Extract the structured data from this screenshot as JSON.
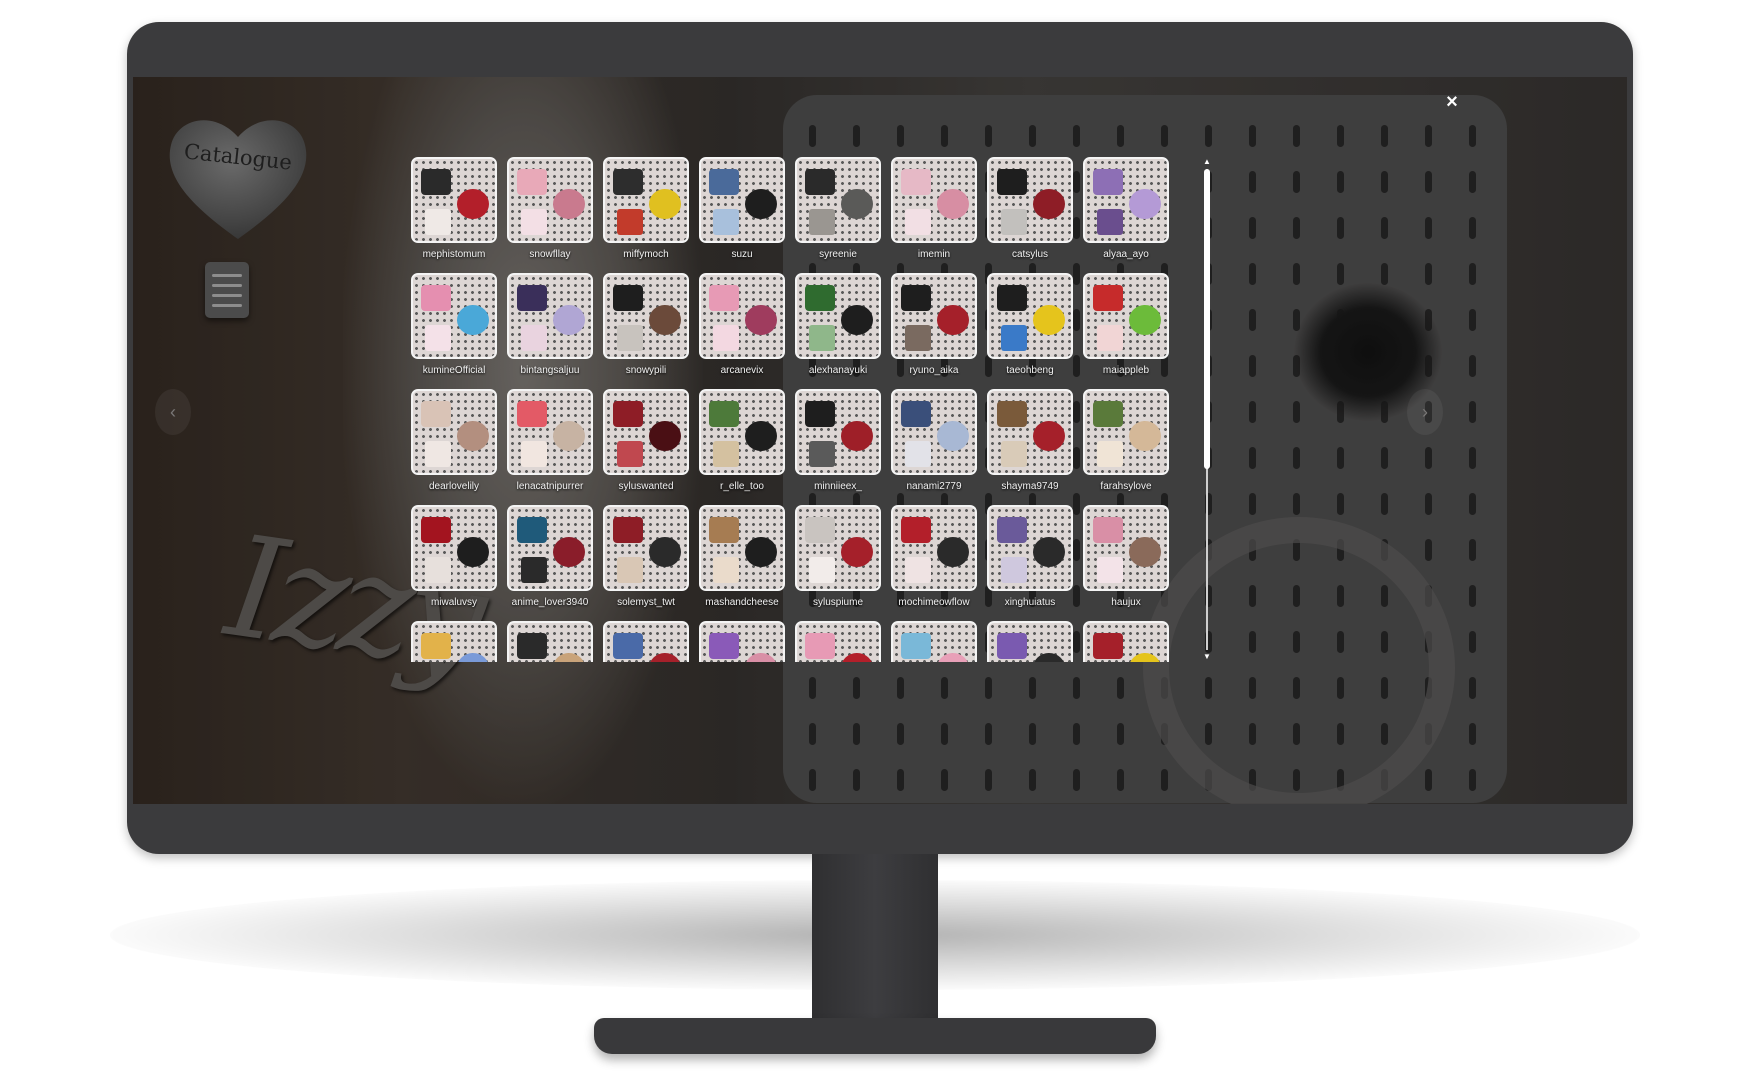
{
  "window": {
    "close_icon": "×"
  },
  "sidebar": {
    "logo_label": "Catalogue",
    "notes_icon": "notepad-icon"
  },
  "signature": {
    "text": "Izzy"
  },
  "navigation": {
    "prev_icon": "‹",
    "next_icon": "›"
  },
  "gallery": {
    "users": [
      {
        "name": "mephistomum",
        "colors": [
          "#2a2a2a",
          "#b31f2a",
          "#efe9e6"
        ]
      },
      {
        "name": "snowfllay",
        "colors": [
          "#e8a9b8",
          "#c97a8e",
          "#f3dfe5"
        ]
      },
      {
        "name": "miffymoch",
        "colors": [
          "#2d2d2d",
          "#e0c020",
          "#c23b2b"
        ]
      },
      {
        "name": "suzu",
        "colors": [
          "#4a6a9a",
          "#1e1e1e",
          "#a8c0dc"
        ]
      },
      {
        "name": "syreenie",
        "colors": [
          "#2a2a2a",
          "#5a5a58",
          "#9a9691"
        ]
      },
      {
        "name": "imemin",
        "colors": [
          "#e6b9c6",
          "#d78ea3",
          "#f2dfe4"
        ]
      },
      {
        "name": "catsylus",
        "colors": [
          "#1e1e1e",
          "#8e1d26",
          "#c2c0bd"
        ]
      },
      {
        "name": "alyaa_ayo",
        "colors": [
          "#8d6fb5",
          "#b49ad6",
          "#6a4e8e"
        ]
      },
      {
        "name": "kumineOfficial",
        "colors": [
          "#e58fb0",
          "#4aa8d8",
          "#f4e1e8"
        ]
      },
      {
        "name": "bintangsaljuu",
        "colors": [
          "#3a2f5a",
          "#b0a6d4",
          "#e9d3df"
        ]
      },
      {
        "name": "snowypili",
        "colors": [
          "#1e1e1e",
          "#6b4a3a",
          "#c8c3be"
        ]
      },
      {
        "name": "arcanevix",
        "colors": [
          "#e79ab5",
          "#9f3c5e",
          "#f3d8e1"
        ]
      },
      {
        "name": "alexhanayuki",
        "colors": [
          "#2f6b2f",
          "#1e1e1e",
          "#8fb78a"
        ]
      },
      {
        "name": "ryuno_aika",
        "colors": [
          "#1e1e1e",
          "#a5202a",
          "#7a6a60"
        ]
      },
      {
        "name": "taeohbeng",
        "colors": [
          "#1e1e1e",
          "#e5c41c",
          "#3a7ac8"
        ]
      },
      {
        "name": "maiappleb",
        "colors": [
          "#c62b2b",
          "#6cbb3a",
          "#f1d5d5"
        ]
      },
      {
        "name": "dearlovelily",
        "colors": [
          "#d9c3b6",
          "#b38f7f",
          "#efe7e3"
        ]
      },
      {
        "name": "lenacatnipurrer",
        "colors": [
          "#e35a66",
          "#c7b3a3",
          "#f1e6e0"
        ]
      },
      {
        "name": "syluswanted",
        "colors": [
          "#8e1d26",
          "#4a0f14",
          "#c0484f"
        ]
      },
      {
        "name": "r_elle_too",
        "colors": [
          "#4d7a3a",
          "#1e1e1e",
          "#d4c1a0"
        ]
      },
      {
        "name": "minniieex_",
        "colors": [
          "#1e1e1e",
          "#9e1f28",
          "#5a5a5a"
        ]
      },
      {
        "name": "nanami2779",
        "colors": [
          "#3a4f7a",
          "#a8b8d4",
          "#e2e2e8"
        ]
      },
      {
        "name": "shayma9749",
        "colors": [
          "#7a5a3a",
          "#a5202a",
          "#d9cbb8"
        ]
      },
      {
        "name": "farahsylove",
        "colors": [
          "#5a7a3a",
          "#d4b898",
          "#f0e4d6"
        ]
      },
      {
        "name": "miwaluvsy",
        "colors": [
          "#a3141f",
          "#1e1e1e",
          "#e7e0dc"
        ]
      },
      {
        "name": "anime_lover3940",
        "colors": [
          "#1f5a7a",
          "#8a1d2a",
          "#2a2a2a"
        ]
      },
      {
        "name": "solemyst_twt",
        "colors": [
          "#8e1d26",
          "#2a2a2a",
          "#d9c7b5"
        ]
      },
      {
        "name": "mashandcheese",
        "colors": [
          "#a67c52",
          "#1e1e1e",
          "#eadbcb"
        ]
      },
      {
        "name": "syluspiume",
        "colors": [
          "#c9c4c0",
          "#a5202a",
          "#f2ecea"
        ]
      },
      {
        "name": "mochimeowflow",
        "colors": [
          "#b31f2a",
          "#2a2a2a",
          "#efe3e3"
        ]
      },
      {
        "name": "xinghuiatus",
        "colors": [
          "#6a5a9a",
          "#2a2a2a",
          "#cfc8de"
        ]
      },
      {
        "name": "haujux",
        "colors": [
          "#d98fa6",
          "#8a6a5a",
          "#f3e3e8"
        ]
      },
      {
        "name": "",
        "colors": [
          "#e2b24a",
          "#7a9ad8",
          "#efe1d0"
        ]
      },
      {
        "name": "",
        "colors": [
          "#2a2a2a",
          "#c9a37a",
          "#e8e4e0"
        ]
      },
      {
        "name": "",
        "colors": [
          "#4a6aa8",
          "#a5202a",
          "#d7d7e6"
        ]
      },
      {
        "name": "",
        "colors": [
          "#8a5ab8",
          "#d98fa6",
          "#efe1ec"
        ]
      },
      {
        "name": "",
        "colors": [
          "#e79ab5",
          "#b31f2a",
          "#f7e4e9"
        ]
      },
      {
        "name": "",
        "colors": [
          "#7ab8d8",
          "#e8a0b8",
          "#eef2f4"
        ]
      },
      {
        "name": "",
        "colors": [
          "#7a5ab0",
          "#2a2a2a",
          "#e2d6ee"
        ]
      },
      {
        "name": "",
        "colors": [
          "#a5202a",
          "#e5c41c",
          "#e6d8cc"
        ]
      },
      {
        "name": "",
        "colors": [
          "#c9a37a",
          "#2a2a2a",
          "#efe4d6"
        ]
      }
    ]
  },
  "scroll": {
    "up_icon": "▲",
    "down_icon": "▼"
  }
}
